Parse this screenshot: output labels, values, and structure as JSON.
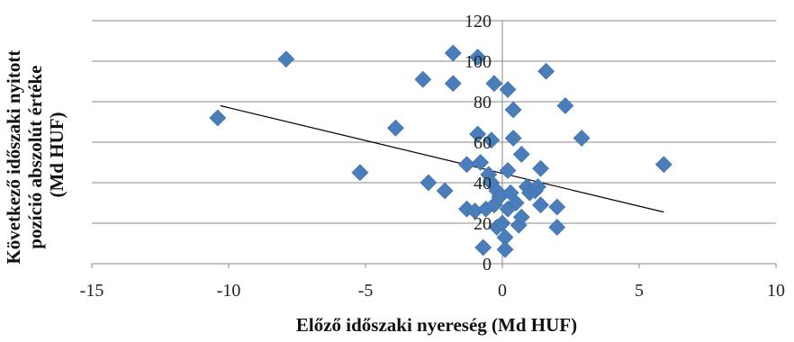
{
  "chart_data": {
    "type": "scatter",
    "title": "",
    "xlabel": "Előző időszaki nyereség (Md HUF)",
    "ylabel_lines": [
      "Következő időszaki nyitott",
      "pozíció abszolút értéke",
      "(Md HUF)"
    ],
    "xlim": [
      -15,
      10
    ],
    "ylim": [
      0,
      120
    ],
    "xticks": [
      -15,
      -10,
      -5,
      0,
      5,
      10
    ],
    "yticks": [
      0,
      20,
      40,
      60,
      80,
      100,
      120
    ],
    "grid": "horizontal",
    "legend": "none",
    "marker": "diamond",
    "marker_color": "#4a7ebb",
    "trendline": {
      "type": "linear",
      "x": [
        -10.3,
        5.9
      ],
      "y": [
        78,
        25.5
      ],
      "color": "#000000"
    },
    "points": [
      {
        "x": -10.4,
        "y": 72
      },
      {
        "x": -7.9,
        "y": 101
      },
      {
        "x": -5.2,
        "y": 45
      },
      {
        "x": -3.9,
        "y": 67
      },
      {
        "x": -2.9,
        "y": 91
      },
      {
        "x": -2.7,
        "y": 40
      },
      {
        "x": -2.1,
        "y": 36
      },
      {
        "x": -1.8,
        "y": 104
      },
      {
        "x": -1.8,
        "y": 89
      },
      {
        "x": -1.3,
        "y": 49
      },
      {
        "x": -1.3,
        "y": 27
      },
      {
        "x": -1.0,
        "y": 26
      },
      {
        "x": -0.9,
        "y": 102
      },
      {
        "x": -0.9,
        "y": 64
      },
      {
        "x": -0.8,
        "y": 50
      },
      {
        "x": -0.7,
        "y": 8
      },
      {
        "x": -0.6,
        "y": 27
      },
      {
        "x": -0.5,
        "y": 44
      },
      {
        "x": -0.4,
        "y": 61
      },
      {
        "x": -0.4,
        "y": 40
      },
      {
        "x": -0.3,
        "y": 89
      },
      {
        "x": -0.3,
        "y": 29
      },
      {
        "x": -0.2,
        "y": 36
      },
      {
        "x": -0.2,
        "y": 18
      },
      {
        "x": -0.1,
        "y": 33
      },
      {
        "x": 0.0,
        "y": 20
      },
      {
        "x": 0.1,
        "y": 13
      },
      {
        "x": 0.1,
        "y": 7
      },
      {
        "x": 0.2,
        "y": 86
      },
      {
        "x": 0.2,
        "y": 46
      },
      {
        "x": 0.2,
        "y": 27
      },
      {
        "x": 0.3,
        "y": 35
      },
      {
        "x": 0.4,
        "y": 76
      },
      {
        "x": 0.4,
        "y": 62
      },
      {
        "x": 0.5,
        "y": 30
      },
      {
        "x": 0.6,
        "y": 19
      },
      {
        "x": 0.7,
        "y": 54
      },
      {
        "x": 0.7,
        "y": 23
      },
      {
        "x": 0.9,
        "y": 38
      },
      {
        "x": 1.0,
        "y": 35
      },
      {
        "x": 1.2,
        "y": 36
      },
      {
        "x": 1.3,
        "y": 38
      },
      {
        "x": 1.4,
        "y": 29
      },
      {
        "x": 1.4,
        "y": 47
      },
      {
        "x": 1.6,
        "y": 95
      },
      {
        "x": 2.0,
        "y": 28
      },
      {
        "x": 2.0,
        "y": 18
      },
      {
        "x": 2.3,
        "y": 78
      },
      {
        "x": 2.9,
        "y": 62
      },
      {
        "x": 5.9,
        "y": 49
      }
    ]
  }
}
